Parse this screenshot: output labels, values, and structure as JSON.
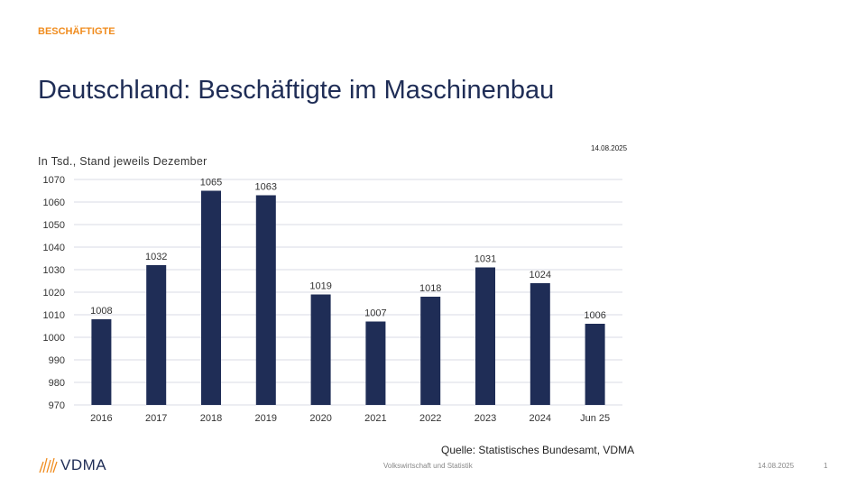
{
  "header": {
    "kicker": "BESCHÄFTIGTE",
    "title": "Deutschland: Beschäftigte im Maschinenbau",
    "date": "14.08.2025"
  },
  "footer": {
    "source": "Quelle: Statistisches Bundesamt, VDMA",
    "center": "Volkswirtschaft und Statistik",
    "date": "14.08.2025",
    "page": "1",
    "logo": "VDMA"
  },
  "colors": {
    "bar": "#1f2d56",
    "accent": "#f08c1e",
    "grid": "#d9dbe6"
  },
  "chart_data": {
    "type": "bar",
    "title": "",
    "subtitle": "In Tsd., Stand jeweils Dezember",
    "categories": [
      "2016",
      "2017",
      "2018",
      "2019",
      "2020",
      "2021",
      "2022",
      "2023",
      "2024",
      "Jun 25"
    ],
    "values": [
      1008,
      1032,
      1065,
      1063,
      1019,
      1007,
      1018,
      1031,
      1024,
      1006
    ],
    "ylim": [
      970,
      1070
    ],
    "yticks": [
      970,
      980,
      990,
      1000,
      1010,
      1020,
      1030,
      1040,
      1050,
      1060,
      1070
    ],
    "grid": true,
    "data_labels": true
  }
}
